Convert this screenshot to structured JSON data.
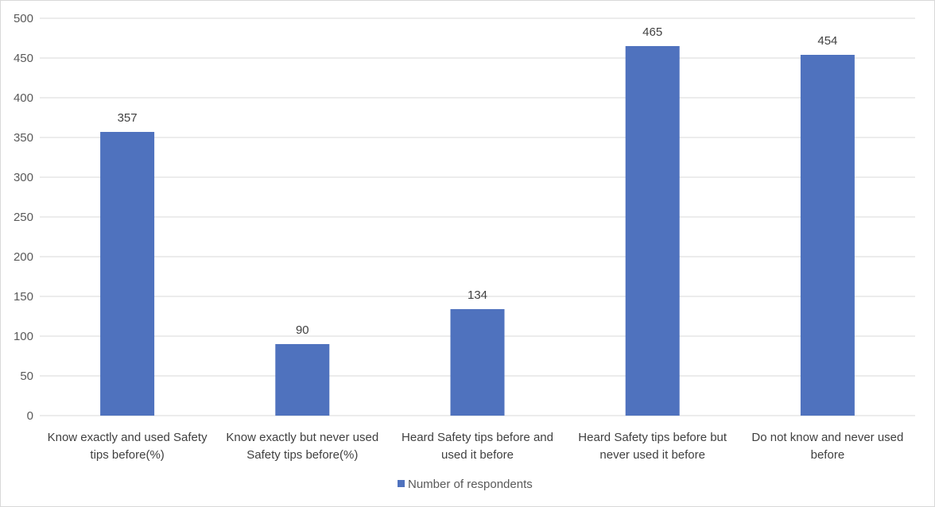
{
  "chart_data": {
    "type": "bar",
    "title": "",
    "xlabel": "",
    "ylabel": "",
    "categories": [
      [
        "Know exactly and used Safety",
        "tips before(%)"
      ],
      [
        "Know exactly but never used",
        "Safety tips before(%)"
      ],
      [
        "Heard Safety tips before and",
        "used it before"
      ],
      [
        "Heard Safety tips before but",
        "never used it before"
      ],
      [
        "Do not know and never used",
        "before"
      ]
    ],
    "series": [
      {
        "name": "Number of respondents",
        "values": [
          357,
          90,
          134,
          465,
          454
        ],
        "color": "#4f72be"
      }
    ],
    "ylim": [
      0,
      500
    ],
    "yticks": [
      0,
      50,
      100,
      150,
      200,
      250,
      300,
      350,
      400,
      450,
      500
    ],
    "grid": true,
    "legend_position": "bottom",
    "data_labels": true
  }
}
